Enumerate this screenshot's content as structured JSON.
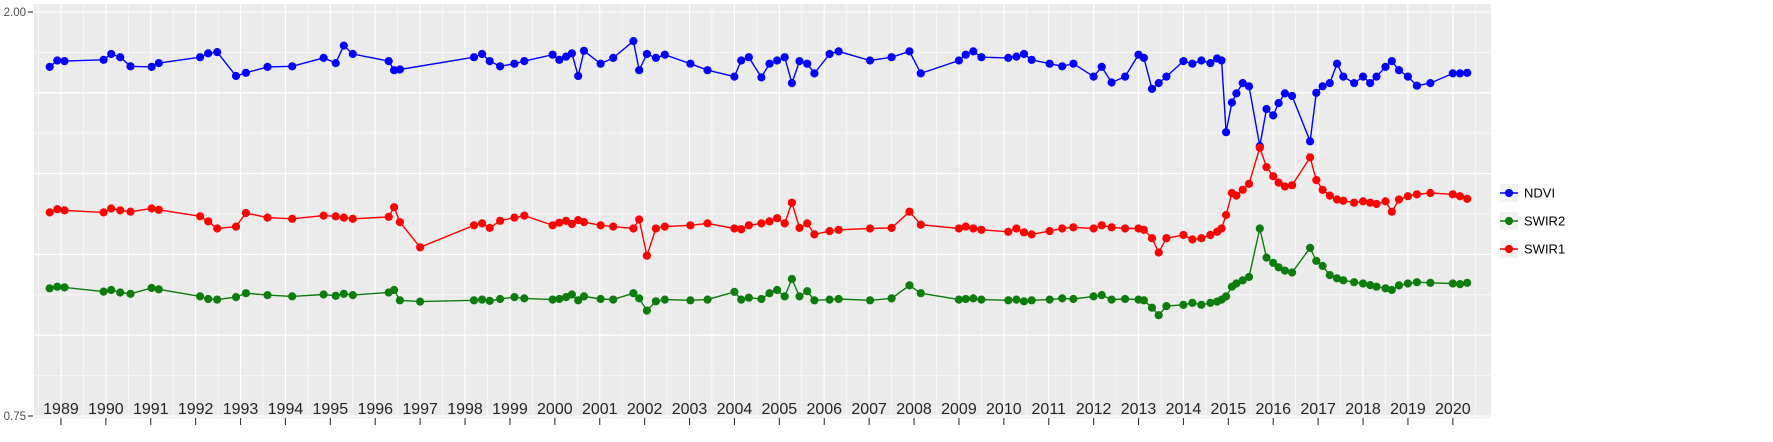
{
  "chart_data": {
    "type": "line",
    "title": "",
    "xlabel": "",
    "ylabel": "",
    "panel_bg": "#EBEBEB",
    "grid_color": "#FFFFFF",
    "axis_text_color": "#4D4D4D",
    "x_label_color": "#262626",
    "tick_color": "#333333",
    "xlim": [
      1988.4,
      2020.85
    ],
    "ylim": [
      0.75,
      2.0
    ],
    "y_ticks": [
      {
        "value": 2.0,
        "label": "2.00"
      },
      {
        "value": 0.75,
        "label": "0.75"
      }
    ],
    "x_tick_years": [
      1989,
      1990,
      1991,
      1992,
      1993,
      1994,
      1995,
      1996,
      1997,
      1998,
      1999,
      2000,
      2001,
      2002,
      2003,
      2004,
      2005,
      2006,
      2007,
      2008,
      2009,
      2010,
      2011,
      2012,
      2013,
      2014,
      2015,
      2016,
      2017,
      2018,
      2019,
      2020
    ],
    "x_tick_labels": [
      "1989",
      "1990",
      "1991",
      "1992",
      "1993",
      "1994",
      "1995",
      "1996",
      "1997",
      "1998",
      "1999",
      "2000",
      "2001",
      "2002",
      "2003",
      "2004",
      "2005",
      "2006",
      "2007",
      "2008",
      "2009",
      "2010",
      "2011",
      "2012",
      "2013",
      "2014",
      "2015",
      "2016",
      "2017",
      "2018",
      "2019",
      "2020"
    ],
    "legend": {
      "position": "right",
      "key_bg": "#F2F2F2",
      "entries": [
        {
          "label": "NDVI",
          "color": "#0000FF"
        },
        {
          "label": "SWIR2",
          "color": "#0C7C0C"
        },
        {
          "label": "SWIR1",
          "color": "#FF0000"
        }
      ]
    },
    "x": [
      1988.75,
      1988.92,
      1989.08,
      1989.95,
      1990.12,
      1990.32,
      1990.55,
      1991.02,
      1991.18,
      1992.1,
      1992.28,
      1992.48,
      1992.9,
      1993.12,
      1993.6,
      1994.15,
      1994.85,
      1995.12,
      1995.3,
      1995.5,
      1996.3,
      1996.42,
      1996.55,
      1997.0,
      1998.2,
      1998.38,
      1998.55,
      1998.78,
      1999.1,
      1999.32,
      1999.95,
      2000.1,
      2000.25,
      2000.38,
      2000.52,
      2000.65,
      2001.02,
      2001.3,
      2001.75,
      2001.88,
      2002.05,
      2002.25,
      2002.45,
      2003.02,
      2003.4,
      2004.0,
      2004.15,
      2004.32,
      2004.6,
      2004.78,
      2004.95,
      2005.12,
      2005.28,
      2005.45,
      2005.62,
      2005.78,
      2006.12,
      2006.32,
      2007.02,
      2007.5,
      2007.9,
      2008.15,
      2009.0,
      2009.15,
      2009.32,
      2009.5,
      2010.1,
      2010.28,
      2010.45,
      2010.62,
      2011.02,
      2011.3,
      2011.55,
      2012.0,
      2012.18,
      2012.4,
      2012.7,
      2013.0,
      2013.12,
      2013.3,
      2013.45,
      2013.62,
      2014.0,
      2014.2,
      2014.4,
      2014.6,
      2014.75,
      2014.85,
      2014.95,
      2015.08,
      2015.18,
      2015.32,
      2015.46,
      2015.7,
      2015.85,
      2016.0,
      2016.12,
      2016.26,
      2016.42,
      2016.82,
      2016.96,
      2017.1,
      2017.26,
      2017.42,
      2017.56,
      2017.8,
      2018.0,
      2018.16,
      2018.3,
      2018.5,
      2018.64,
      2018.8,
      2019.0,
      2019.2,
      2019.5,
      2020.0,
      2020.16,
      2020.32
    ],
    "series": [
      {
        "name": "NDVI",
        "color": "#0000FF",
        "values": [
          1.83,
          1.85,
          1.848,
          1.852,
          1.87,
          1.86,
          1.832,
          1.83,
          1.842,
          1.86,
          1.872,
          1.876,
          1.802,
          1.812,
          1.83,
          1.832,
          1.858,
          1.842,
          1.896,
          1.87,
          1.848,
          1.82,
          1.822,
          null,
          1.86,
          1.87,
          1.848,
          1.832,
          1.84,
          1.848,
          1.868,
          1.852,
          1.862,
          1.872,
          1.802,
          1.88,
          1.84,
          1.858,
          1.91,
          1.82,
          1.87,
          1.858,
          1.868,
          1.84,
          1.82,
          1.8,
          1.85,
          1.86,
          1.798,
          1.84,
          1.85,
          1.86,
          1.78,
          1.848,
          1.84,
          1.81,
          1.87,
          1.878,
          1.85,
          1.86,
          1.878,
          1.81,
          1.85,
          1.868,
          1.878,
          1.86,
          1.858,
          1.862,
          1.87,
          1.852,
          1.84,
          1.832,
          1.84,
          1.8,
          1.83,
          1.782,
          1.8,
          1.868,
          1.858,
          1.762,
          1.78,
          1.8,
          1.848,
          1.84,
          1.85,
          1.842,
          1.856,
          1.85,
          1.628,
          1.72,
          1.748,
          1.78,
          1.77,
          1.585,
          1.7,
          1.68,
          1.718,
          1.748,
          1.74,
          1.6,
          1.75,
          1.77,
          1.78,
          1.84,
          1.8,
          1.78,
          1.8,
          1.78,
          1.8,
          1.83,
          1.848,
          1.82,
          1.8,
          1.772,
          1.78,
          1.81,
          1.81,
          1.812
        ]
      },
      {
        "name": "SWIR2",
        "color": "#0C7C0C",
        "values": [
          1.145,
          1.15,
          1.148,
          1.135,
          1.14,
          1.132,
          1.128,
          1.146,
          1.142,
          1.12,
          1.112,
          1.11,
          1.118,
          1.13,
          1.124,
          1.12,
          1.126,
          1.122,
          1.128,
          1.124,
          1.132,
          1.14,
          1.108,
          1.104,
          1.108,
          1.11,
          1.106,
          1.112,
          1.118,
          1.114,
          1.11,
          1.112,
          1.118,
          1.126,
          1.108,
          1.12,
          1.112,
          1.11,
          1.13,
          1.114,
          1.076,
          1.105,
          1.11,
          1.108,
          1.11,
          1.134,
          1.11,
          1.116,
          1.112,
          1.13,
          1.14,
          1.12,
          1.174,
          1.12,
          1.136,
          1.108,
          1.11,
          1.112,
          1.108,
          1.114,
          1.154,
          1.13,
          1.11,
          1.112,
          1.114,
          1.11,
          1.108,
          1.11,
          1.105,
          1.108,
          1.11,
          1.114,
          1.112,
          1.12,
          1.124,
          1.11,
          1.112,
          1.11,
          1.108,
          1.085,
          1.062,
          1.09,
          1.094,
          1.1,
          1.094,
          1.1,
          1.104,
          1.11,
          1.12,
          1.15,
          1.16,
          1.17,
          1.18,
          1.33,
          1.24,
          1.224,
          1.21,
          1.2,
          1.194,
          1.27,
          1.23,
          1.214,
          1.186,
          1.176,
          1.17,
          1.164,
          1.16,
          1.155,
          1.15,
          1.145,
          1.14,
          1.154,
          1.16,
          1.164,
          1.162,
          1.16,
          1.158,
          1.162
        ]
      },
      {
        "name": "SWIR1",
        "color": "#FF0000",
        "values": [
          1.38,
          1.39,
          1.386,
          1.38,
          1.392,
          1.386,
          1.382,
          1.392,
          1.388,
          1.368,
          1.352,
          1.33,
          1.336,
          1.378,
          1.364,
          1.36,
          1.37,
          1.368,
          1.364,
          1.36,
          1.366,
          1.396,
          1.35,
          1.272,
          1.34,
          1.346,
          1.332,
          1.354,
          1.364,
          1.37,
          1.34,
          1.348,
          1.354,
          1.344,
          1.356,
          1.35,
          1.34,
          1.336,
          1.33,
          1.358,
          1.246,
          1.33,
          1.336,
          1.34,
          1.346,
          1.33,
          1.328,
          1.34,
          1.346,
          1.352,
          1.362,
          1.346,
          1.41,
          1.332,
          1.346,
          1.312,
          1.322,
          1.326,
          1.33,
          1.332,
          1.382,
          1.342,
          1.33,
          1.336,
          1.33,
          1.326,
          1.32,
          1.33,
          1.318,
          1.312,
          1.322,
          1.33,
          1.334,
          1.33,
          1.34,
          1.334,
          1.33,
          1.33,
          1.326,
          1.3,
          1.256,
          1.3,
          1.31,
          1.296,
          1.3,
          1.31,
          1.32,
          1.33,
          1.372,
          1.44,
          1.432,
          1.45,
          1.468,
          1.58,
          1.52,
          1.492,
          1.472,
          1.46,
          1.464,
          1.55,
          1.48,
          1.45,
          1.432,
          1.42,
          1.416,
          1.41,
          1.414,
          1.41,
          1.406,
          1.414,
          1.382,
          1.42,
          1.43,
          1.436,
          1.44,
          1.436,
          1.43,
          1.422
        ]
      }
    ]
  }
}
